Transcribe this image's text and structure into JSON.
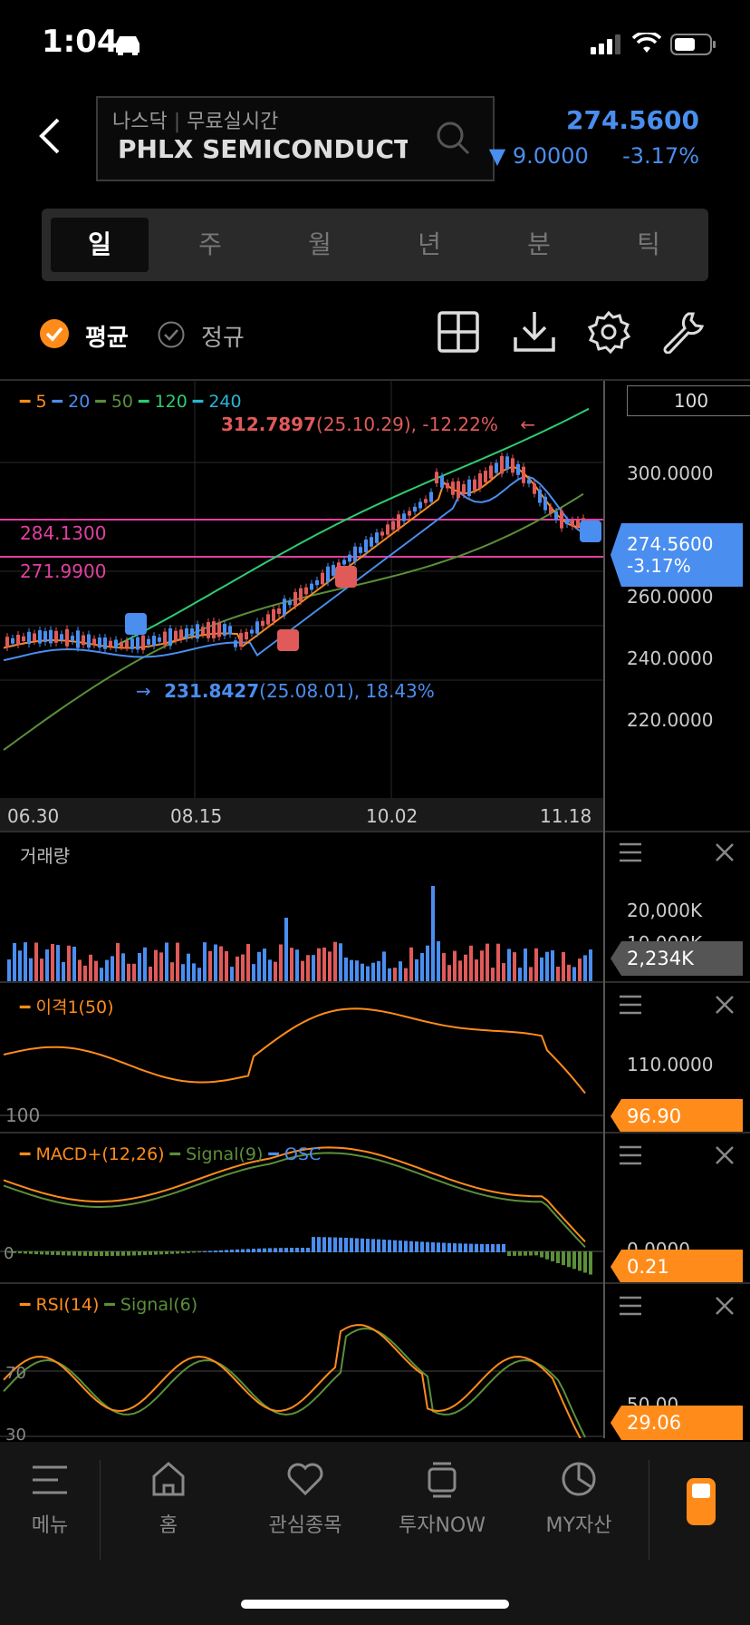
{
  "status": {
    "time": "1:04"
  },
  "header": {
    "market": "나스닥",
    "realtime": "무료실시간",
    "symbol": "PHLX SEMICONDUCT",
    "price": "274.5600",
    "change_arrow": "▼",
    "change": "9.0000",
    "change_pct": "-3.17%"
  },
  "tabs": [
    "일",
    "주",
    "월",
    "년",
    "분",
    "틱"
  ],
  "options": {
    "average": "평균",
    "regular": "정규"
  },
  "toolbar_icons": [
    "grid-icon",
    "download-icon",
    "settings-icon",
    "wrench-icon"
  ],
  "main_chart": {
    "zoom": "100",
    "ma_legend": [
      {
        "label": "5",
        "color": "#ff8c1a"
      },
      {
        "label": "20",
        "color": "#4a8ef0"
      },
      {
        "label": "50",
        "color": "#5b8f3a"
      },
      {
        "label": "120",
        "color": "#2ecc71"
      },
      {
        "label": "240",
        "color": "#29b6d6"
      }
    ],
    "high_label": {
      "value": "312.7897",
      "detail": "(25.10.29), -12.22%",
      "arrow": "←"
    },
    "low_label": {
      "arrow": "→",
      "value": "231.8427",
      "detail": "(25.08.01), 18.43%"
    },
    "lines": [
      "284.1300",
      "271.9900"
    ],
    "y_ticks": [
      "300.0000",
      "260.0000",
      "240.0000",
      "220.0000"
    ],
    "x_ticks": [
      "06.30",
      "08.15",
      "10.02",
      "11.18"
    ],
    "current_price": "274.5600",
    "current_pct": "-3.17%"
  },
  "volume": {
    "title": "거래량",
    "tick": "20,000K",
    "tick2": "10,000K",
    "current": "2,234K"
  },
  "disparity": {
    "title": "이격1(50)",
    "tick_top": "110.0000",
    "tick_bottom": "100",
    "current": "96.90"
  },
  "macd": {
    "legend": [
      "MACD+(12,26)",
      "Signal(9)",
      "OSC"
    ],
    "tick_zero": "0",
    "tick": "0.0000",
    "current": "0.21"
  },
  "rsi": {
    "legend": [
      "RSI(14)",
      "Signal(6)"
    ],
    "tick_top": "70",
    "tick_mid": "50.00",
    "tick_bottom": "30",
    "current": "29.06"
  },
  "colors": {
    "up": "#e05a5a",
    "down": "#4a8ef0",
    "accent": "#ff8c1a",
    "magenta": "#e040a0"
  },
  "bottom_nav": [
    {
      "label": "메뉴",
      "icon": "menu-icon"
    },
    {
      "label": "홈",
      "icon": "home-icon"
    },
    {
      "label": "관심종목",
      "icon": "heart-icon"
    },
    {
      "label": "투자NOW",
      "icon": "stack-icon"
    },
    {
      "label": "MY자산",
      "icon": "pie-chart-icon"
    }
  ]
}
